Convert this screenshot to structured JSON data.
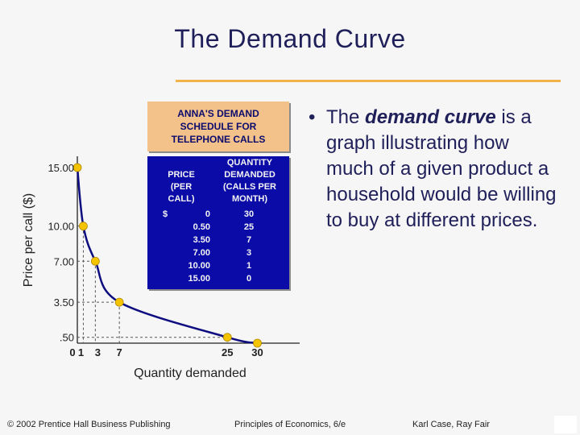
{
  "slide": {
    "title": "The Demand Curve",
    "bullet": {
      "text_before": "The ",
      "emphasis": "demand curve",
      "text_after": " is a graph illustrating how much of a given product a household would be willing to buy at different prices."
    },
    "footer": {
      "copyright": "© 2002 Prentice Hall Business Publishing",
      "book": "Principles of Economics, 6/e",
      "authors": "Karl Case, Ray Fair"
    },
    "colors": {
      "title": "#1f1f5a",
      "accent_rule": "#f2b34a",
      "table_header_bg": "#f2c28a",
      "table_body_bg": "#0b0ba8",
      "curve": "#0d0d80",
      "points": "#f5c400"
    }
  },
  "table": {
    "title": "ANNA'S DEMAND SCHEDULE FOR TELEPHONE CALLS",
    "col_price": "PRICE (PER CALL)",
    "col_quantity": "QUANTITY DEMANDED (CALLS PER MONTH)",
    "currency": "$",
    "rows": [
      {
        "price": "0",
        "qty": "30"
      },
      {
        "price": "0.50",
        "qty": "25"
      },
      {
        "price": "3.50",
        "qty": "7"
      },
      {
        "price": "7.00",
        "qty": "3"
      },
      {
        "price": "10.00",
        "qty": "1"
      },
      {
        "price": "15.00",
        "qty": "0"
      }
    ]
  },
  "chart_data": {
    "type": "line",
    "x": [
      0,
      1,
      3,
      7,
      25,
      30
    ],
    "y": [
      15.0,
      10.0,
      7.0,
      3.5,
      0.5,
      0
    ],
    "xlabel": "Quantity demanded",
    "ylabel": "Price per call ($)",
    "xticks": [
      "0",
      "1",
      "3",
      "7",
      "25",
      "30"
    ],
    "yticks": [
      ".50",
      "3.50",
      "7.00",
      "10.00",
      "15.00"
    ],
    "ylim": [
      0,
      15
    ],
    "xlim": [
      0,
      30
    ],
    "note": ""
  }
}
